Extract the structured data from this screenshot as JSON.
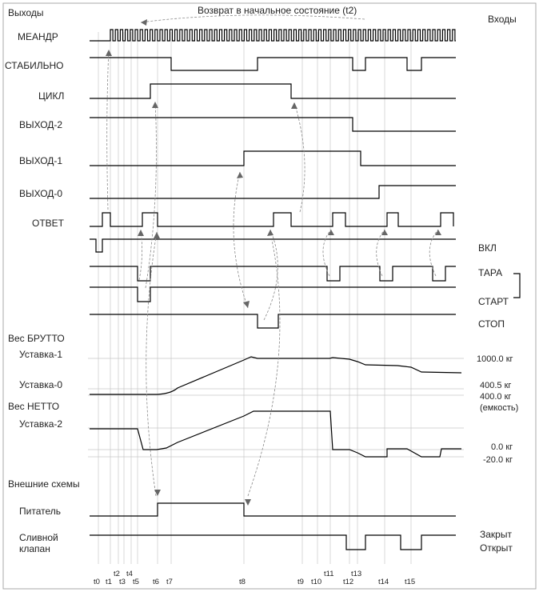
{
  "header": {
    "outputs": "Выходы",
    "inputs": "Входы",
    "title": "Возврат в начальное состояние (t2)"
  },
  "left_labels": {
    "meander": "МЕАНДР",
    "stable": "СТАБИЛЬНО",
    "cycle": "ЦИКЛ",
    "out2": "ВЫХОД-2",
    "out1": "ВЫХОД-1",
    "out0": "ВЫХОД-0",
    "answer": "ОТВЕТ",
    "gross": "Вес БРУТТО",
    "set1": "Уставка-1",
    "set0": "Уставка-0",
    "net": "Вес НЕТТО",
    "set2": "Уставка-2",
    "external": "Внешние схемы",
    "feeder": "Питатель",
    "valve_line1": "Сливной",
    "valve_line2": "клапан"
  },
  "right_labels": {
    "on": "ВКЛ",
    "tare": "ТАРА",
    "start": "СТАРТ",
    "stop": "СТОП",
    "w1000": "1000.0 кг",
    "w400_5": "400.5 кг",
    "w400": "400.0 кг",
    "capacity": "(емкость)",
    "w0": "0.0 кг",
    "wm20": "-20.0 кг",
    "closed": "Закрыт",
    "open": "Открыт"
  },
  "time_marks": {
    "t0": "t0",
    "t1": "t1",
    "t2": "t2",
    "t3": "t3",
    "t4": "t4",
    "t5": "t5",
    "t6": "t6",
    "t7": "t7",
    "t8": "t8",
    "t9": "t9",
    "t10": "t10",
    "t11": "t11",
    "t12": "t12",
    "t13": "t13",
    "t14": "t14",
    "t15": "t15"
  }
}
